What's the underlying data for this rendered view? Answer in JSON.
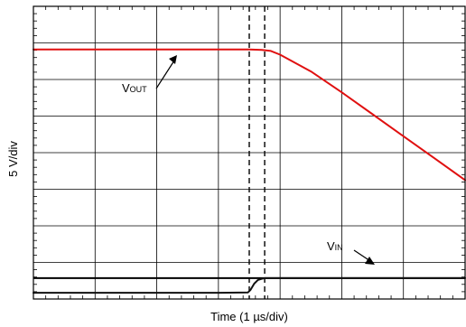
{
  "chart_data": {
    "type": "line",
    "title": "",
    "xlabel": "Time (1 µs/div)",
    "ylabel": "5 V/div",
    "x_divisions": 7,
    "y_divisions": 8,
    "x_unit_per_div_us": 1,
    "y_unit_per_div_v": 5,
    "grid": true,
    "cursor_x_divs": [
      3.5,
      3.75
    ],
    "series": [
      {
        "name": "VOUT",
        "label_main": "V",
        "label_sub": "OUT",
        "color": "#e01010",
        "x_divs": [
          0,
          1,
          2,
          3,
          3.5,
          3.7,
          3.85,
          4.0,
          4.5,
          5.0,
          5.5,
          6.0,
          6.5,
          7.0
        ],
        "y_divs": [
          6.82,
          6.82,
          6.82,
          6.82,
          6.82,
          6.81,
          6.78,
          6.68,
          6.22,
          5.65,
          5.05,
          4.45,
          3.85,
          3.25
        ]
      },
      {
        "name": "VIN",
        "label_main": "V",
        "label_sub": "IN",
        "color": "#111111",
        "x_divs": [
          0,
          1,
          2,
          3,
          3.48,
          3.52,
          3.58,
          3.64,
          3.7,
          3.75,
          4,
          5,
          6,
          7
        ],
        "y_divs": [
          0.17,
          0.17,
          0.17,
          0.17,
          0.18,
          0.25,
          0.42,
          0.52,
          0.55,
          0.57,
          0.57,
          0.57,
          0.57,
          0.57
        ]
      }
    ],
    "overlay_y_divs": [
      0.57
    ]
  }
}
